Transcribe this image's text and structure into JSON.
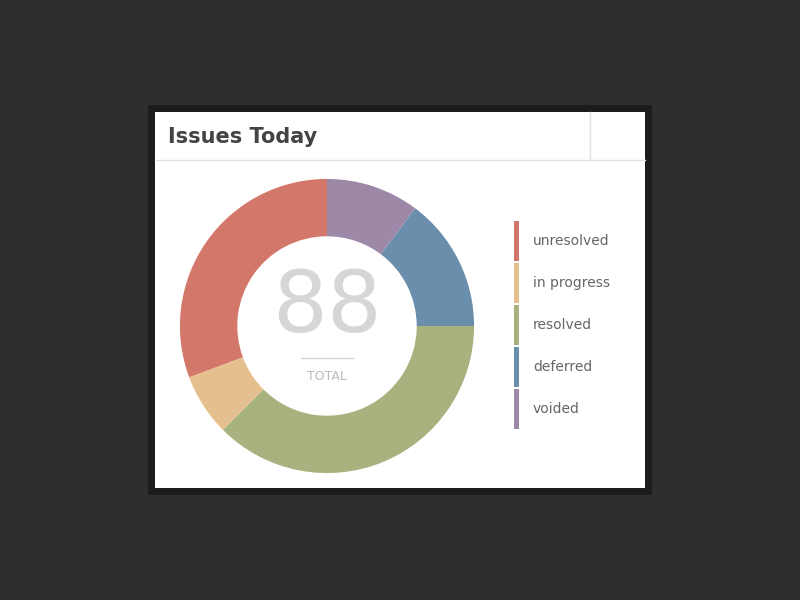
{
  "chart_data": {
    "type": "pie",
    "title": "Issues Today",
    "categories": [
      "unresolved",
      "in progress",
      "resolved",
      "deferred",
      "voided"
    ],
    "values": [
      27,
      6,
      33,
      13,
      9
    ],
    "colors": [
      "#d4776b",
      "#e5c08e",
      "#a8b27e",
      "#6a8eab",
      "#9e88a8"
    ],
    "center_value": 88,
    "center_label": "TOTAL",
    "legend": "right"
  }
}
